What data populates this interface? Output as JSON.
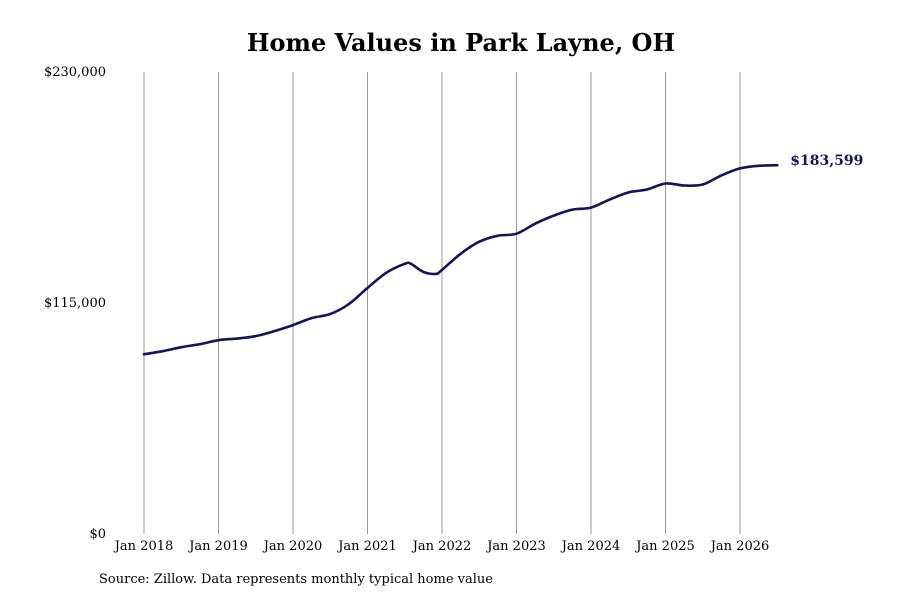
{
  "chart_data": {
    "type": "line",
    "title": "Home Values in Park Layne, OH",
    "xlabel": "",
    "ylabel": "",
    "ylim": [
      0,
      230000
    ],
    "xlim": [
      "2018-01",
      "2026-07"
    ],
    "grid": "vertical",
    "yticks": [
      {
        "value": 0,
        "label": "$0"
      },
      {
        "value": 115000,
        "label": "$115,000"
      },
      {
        "value": 230000,
        "label": "$230,000"
      }
    ],
    "xticks": [
      {
        "value": "2018-01",
        "label": "Jan 2018"
      },
      {
        "value": "2019-01",
        "label": "Jan 2019"
      },
      {
        "value": "2020-01",
        "label": "Jan 2020"
      },
      {
        "value": "2021-01",
        "label": "Jan 2021"
      },
      {
        "value": "2022-01",
        "label": "Jan 2022"
      },
      {
        "value": "2023-01",
        "label": "Jan 2023"
      },
      {
        "value": "2024-01",
        "label": "Jan 2024"
      },
      {
        "value": "2025-01",
        "label": "Jan 2025"
      },
      {
        "value": "2026-01",
        "label": "Jan 2026"
      }
    ],
    "series": [
      {
        "color": "#14145a",
        "end_label": "$183,599",
        "points": [
          {
            "x": "2018-01",
            "y": 89500
          },
          {
            "x": "2018-04",
            "y": 91000
          },
          {
            "x": "2018-07",
            "y": 93000
          },
          {
            "x": "2018-10",
            "y": 94500
          },
          {
            "x": "2019-01",
            "y": 96500
          },
          {
            "x": "2019-04",
            "y": 97300
          },
          {
            "x": "2019-07",
            "y": 98500
          },
          {
            "x": "2019-10",
            "y": 101000
          },
          {
            "x": "2020-01",
            "y": 104000
          },
          {
            "x": "2020-04",
            "y": 107500
          },
          {
            "x": "2020-07",
            "y": 109500
          },
          {
            "x": "2020-10",
            "y": 114500
          },
          {
            "x": "2021-01",
            "y": 122500
          },
          {
            "x": "2021-04",
            "y": 130000
          },
          {
            "x": "2021-07",
            "y": 134500
          },
          {
            "x": "2021-08",
            "y": 134500
          },
          {
            "x": "2021-10",
            "y": 130500
          },
          {
            "x": "2021-12",
            "y": 129500
          },
          {
            "x": "2022-01",
            "y": 131500
          },
          {
            "x": "2022-04",
            "y": 139500
          },
          {
            "x": "2022-07",
            "y": 145500
          },
          {
            "x": "2022-10",
            "y": 148500
          },
          {
            "x": "2023-01",
            "y": 149500
          },
          {
            "x": "2023-04",
            "y": 154500
          },
          {
            "x": "2023-07",
            "y": 158500
          },
          {
            "x": "2023-10",
            "y": 161500
          },
          {
            "x": "2024-01",
            "y": 162500
          },
          {
            "x": "2024-04",
            "y": 166500
          },
          {
            "x": "2024-07",
            "y": 170000
          },
          {
            "x": "2024-10",
            "y": 171500
          },
          {
            "x": "2025-01",
            "y": 174500
          },
          {
            "x": "2025-04",
            "y": 173500
          },
          {
            "x": "2025-07",
            "y": 174000
          },
          {
            "x": "2025-10",
            "y": 178500
          },
          {
            "x": "2026-01",
            "y": 182000
          },
          {
            "x": "2026-04",
            "y": 183300
          },
          {
            "x": "2026-07",
            "y": 183599
          }
        ]
      }
    ]
  },
  "footer": {
    "source": "Source: Zillow. Data represents monthly typical home value"
  }
}
